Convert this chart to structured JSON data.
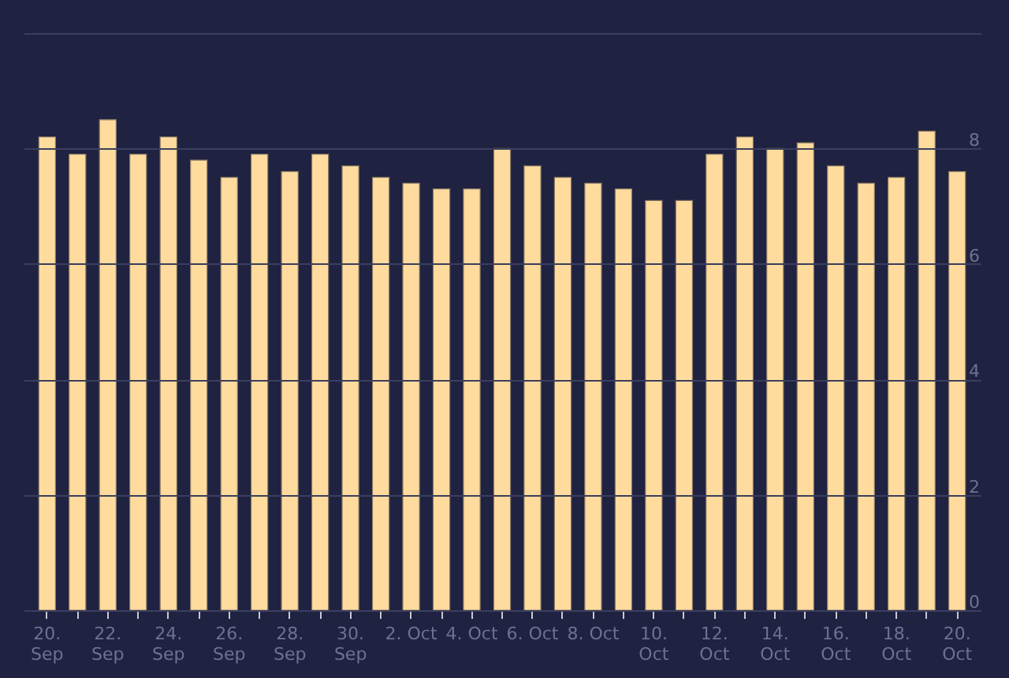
{
  "chart_data": {
    "type": "bar",
    "categories": [
      "20. Sep",
      null,
      "22. Sep",
      null,
      "24. Sep",
      null,
      "26. Sep",
      null,
      "28. Sep",
      null,
      "30. Sep",
      null,
      "2. Oct",
      null,
      "4. Oct",
      null,
      "6. Oct",
      null,
      "8. Oct",
      null,
      "10. Oct",
      null,
      "12. Oct",
      null,
      "14. Oct",
      null,
      "16. Oct",
      null,
      "18. Oct",
      null,
      "20. Oct"
    ],
    "values": [
      8.2,
      7.9,
      8.5,
      7.9,
      8.2,
      7.8,
      7.5,
      7.9,
      7.6,
      7.9,
      7.7,
      7.5,
      7.4,
      7.3,
      7.3,
      8.0,
      7.7,
      7.5,
      7.4,
      7.3,
      7.1,
      7.1,
      7.9,
      8.2,
      8.0,
      8.1,
      7.7,
      7.4,
      7.5,
      8.3,
      7.6
    ],
    "color": "#ffdb9e",
    "ylim": [
      0,
      10
    ],
    "yticks": [
      0,
      2,
      4,
      6,
      8,
      {
        "value": 10,
        "label": null
      }
    ],
    "grid": "y"
  }
}
